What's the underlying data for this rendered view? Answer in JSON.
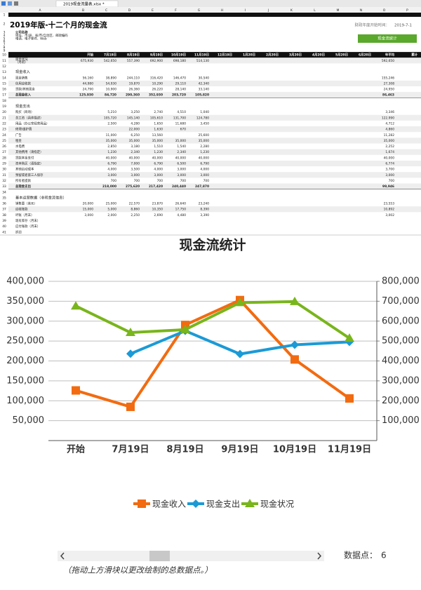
{
  "app": {
    "tab": "2019现金流量表.xlsx *",
    "columns": [
      "A",
      "B",
      "C",
      "D",
      "E",
      "F",
      "G",
      "H",
      "I",
      "J",
      "K",
      "L",
      "M",
      "N",
      "O",
      "P"
    ]
  },
  "sheet": {
    "title": "2019年版-十二个月的现金流",
    "fy_label": "财政年度开始时间：",
    "fy_value": "2019-7-1",
    "button": "现金流统计",
    "rows": [
      {
        "n": 1,
        "style": "black"
      },
      {
        "n": 2
      },
      {
        "n": 3,
        "label": "公司名称",
        "style": "bold"
      },
      {
        "n": 4,
        "label": "地址、市/县、省/市/自治区、邮政编码"
      },
      {
        "n": 5,
        "label": "电话、电子邮件、Web"
      },
      {
        "n": 6
      },
      {
        "n": 7
      },
      {
        "n": 8
      },
      {
        "n": 9
      },
      {
        "n": 10,
        "style": "header",
        "cells": [
          "开始",
          "7月19日",
          "8月19日",
          "9月19日",
          "10月19日",
          "11月19日",
          "12月19日",
          "1月20日",
          "2月20日",
          "3月20日",
          "4月20日",
          "5月20日",
          "6月20日",
          "年平均",
          "累计"
        ]
      },
      {
        "n": 11,
        "label": "现金状况",
        "sub": "（月初）",
        "cells": [
          "675,930",
          "542,650",
          "557,390",
          "692,900",
          "698,180",
          "514,130",
          null,
          null,
          null,
          null,
          null,
          null,
          null,
          "592,650",
          null
        ]
      },
      {
        "n": 12
      },
      {
        "n": 13,
        "label": "现金收入",
        "style": "section"
      },
      {
        "n": 14,
        "label": "现金销售",
        "cells": [
          "56,160",
          "38,890",
          "244,110",
          "316,420",
          "146,470",
          "30,540",
          null,
          null,
          null,
          null,
          null,
          null,
          null,
          "155,246",
          null
        ]
      },
      {
        "n": 15,
        "label": "信用应收款",
        "cells": [
          "44,980",
          "54,930",
          "19,870",
          "10,290",
          "29,110",
          "42,340",
          null,
          null,
          null,
          null,
          null,
          null,
          null,
          "27,308",
          null
        ]
      },
      {
        "n": 16,
        "label": "贷款/其他现金",
        "cells": [
          "24,790",
          "10,900",
          "26,360",
          "26,220",
          "28,140",
          "33,140",
          null,
          null,
          null,
          null,
          null,
          null,
          null,
          "24,950",
          null
        ]
      },
      {
        "n": 17,
        "label": "总现金收入",
        "style": "total",
        "cells": [
          "125,930",
          "84,720",
          "290,360",
          "352,930",
          "203,720",
          "105,820",
          null,
          null,
          null,
          null,
          null,
          null,
          null,
          "86,463",
          null
        ]
      },
      {
        "n": 18
      },
      {
        "n": 19,
        "label": "现金支出",
        "style": "section"
      },
      {
        "n": 20,
        "label": "购买（商场）",
        "cells": [
          null,
          "5,210",
          "3,250",
          "2,740",
          "4,510",
          "1,040",
          null,
          null,
          null,
          null,
          null,
          null,
          null,
          "3,346",
          null
        ]
      },
      {
        "n": 21,
        "label": "总工资（具体描述）",
        "cells": [
          null,
          "105,720",
          "145,140",
          "105,610",
          "131,700",
          "124,780",
          null,
          null,
          null,
          null,
          null,
          null,
          null,
          "122,990",
          null
        ]
      },
      {
        "n": 22,
        "label": "用品（办公室经营用品）",
        "cells": [
          null,
          "2,500",
          "4,280",
          "1,650",
          "11,680",
          "3,450",
          null,
          null,
          null,
          null,
          null,
          null,
          null,
          "4,712",
          null
        ]
      },
      {
        "n": 23,
        "label": "修理/维护费",
        "cells": [
          null,
          null,
          "22,000",
          "1,630",
          "670",
          null,
          null,
          null,
          null,
          null,
          null,
          null,
          null,
          "4,860",
          null
        ]
      },
      {
        "n": 24,
        "label": "广告",
        "cells": [
          null,
          "11,000",
          "6,250",
          "13,560",
          null,
          "25,600",
          null,
          null,
          null,
          null,
          null,
          null,
          null,
          "11,282",
          null
        ]
      },
      {
        "n": 25,
        "label": "租金",
        "cells": [
          null,
          "35,000",
          "35,000",
          "35,000",
          "35,000",
          "35,000",
          null,
          null,
          null,
          null,
          null,
          null,
          null,
          "35,000",
          null
        ]
      },
      {
        "n": 26,
        "label": "水电费",
        "cells": [
          null,
          "2,850",
          "3,180",
          "1,510",
          "1,540",
          "2,280",
          null,
          null,
          null,
          null,
          null,
          null,
          null,
          "2,252",
          null
        ]
      },
      {
        "n": 27,
        "label": "其他费用（请指定）",
        "cells": [
          null,
          "1,230",
          "2,340",
          "1,230",
          "2,340",
          "1,230",
          null,
          null,
          null,
          null,
          null,
          null,
          null,
          "1,674",
          null
        ]
      },
      {
        "n": 28,
        "label": "贷款本金支付",
        "cells": [
          null,
          "40,000",
          "40,000",
          "40,000",
          "40,000",
          "40,000",
          null,
          null,
          null,
          null,
          null,
          null,
          null,
          "40,000",
          null
        ]
      },
      {
        "n": 29,
        "label": "资本购买（请指定）",
        "cells": [
          null,
          "6,790",
          "7,000",
          "6,790",
          "6,500",
          "6,790",
          null,
          null,
          null,
          null,
          null,
          null,
          null,
          "6,774",
          null
        ]
      },
      {
        "n": 30,
        "label": "其他启动成本",
        "cells": [
          null,
          "4,000",
          "3,500",
          "4,000",
          "3,000",
          "4,000",
          null,
          null,
          null,
          null,
          null,
          null,
          null,
          "3,700",
          null
        ]
      },
      {
        "n": 31,
        "label": "预留或者第三人保存",
        "cells": [
          null,
          "3,000",
          "3,000",
          "3,000",
          "3,000",
          "3,000",
          null,
          null,
          null,
          null,
          null,
          null,
          null,
          "3,000",
          null
        ]
      },
      {
        "n": 32,
        "label": "所有者提款",
        "cells": [
          null,
          "700",
          "700",
          "700",
          "700",
          "700",
          null,
          null,
          null,
          null,
          null,
          null,
          null,
          "700",
          null
        ]
      },
      {
        "n": 33,
        "label": "总现金支出",
        "style": "total",
        "cells": [
          null,
          "218,000",
          "275,620",
          "217,420",
          "240,440",
          "247,870",
          null,
          null,
          null,
          null,
          null,
          null,
          null,
          "99,946",
          null
        ]
      },
      {
        "n": 34
      },
      {
        "n": 35,
        "label": "基本运营数据（非现金流信息）",
        "style": "section"
      },
      {
        "n": 36,
        "label": "销售量（美元）",
        "cells": [
          "20,000",
          "25,000",
          "22,570",
          "23,870",
          "26,640",
          "23,240",
          null,
          null,
          null,
          null,
          null,
          null,
          null,
          "23,553",
          null
        ]
      },
      {
        "n": 37,
        "label": "应收账款",
        "cells": [
          "15,000",
          "5,000",
          "8,860",
          "10,350",
          "17,750",
          "8,390",
          null,
          null,
          null,
          null,
          null,
          null,
          null,
          "10,892",
          null
        ]
      },
      {
        "n": 38,
        "label": "坏账（月末）",
        "cells": [
          "3,000",
          "2,000",
          "2,250",
          "2,690",
          "4,480",
          "3,390",
          null,
          null,
          null,
          null,
          null,
          null,
          null,
          "3,002",
          null
        ]
      },
      {
        "n": 39,
        "label": "现有库存（月末）"
      },
      {
        "n": 40,
        "label": "应付账款（月末）"
      },
      {
        "n": 41,
        "label": "折旧"
      }
    ]
  },
  "chart_data": {
    "type": "line",
    "title": "现金流统计",
    "categories": [
      "开始",
      "7月19日",
      "8月19日",
      "9月19日",
      "10月19日",
      "11月19日"
    ],
    "series": [
      {
        "name": "现金收入",
        "color": "#f26b10",
        "marker": "square",
        "values": [
          125930,
          84720,
          290360,
          352930,
          203720,
          105820
        ]
      },
      {
        "name": "现金支出",
        "color": "#1b9ad6",
        "marker": "diamond",
        "values": [
          null,
          218000,
          275620,
          217420,
          240440,
          247870
        ]
      },
      {
        "name": "现金状况",
        "color": "#79b51c",
        "marker": "triangle",
        "axis": "y2",
        "values": [
          675930,
          542650,
          557390,
          692900,
          698180,
          514130
        ]
      }
    ],
    "ylim": [
      0,
      400000
    ],
    "yticks": [
      {
        "value": 50000,
        "label": "50,000"
      },
      {
        "value": 100000,
        "label": "100,000"
      },
      {
        "value": 150000,
        "label": "150,000"
      },
      {
        "value": 200000,
        "label": "200,000"
      },
      {
        "value": 250000,
        "label": "250,000"
      },
      {
        "value": 300000,
        "label": "300,000"
      },
      {
        "value": 350000,
        "label": "350,000"
      },
      {
        "value": 400000,
        "label": "400,000"
      }
    ],
    "y2lim": [
      0,
      800000
    ],
    "y2ticks": [
      {
        "value": 100000,
        "label": "100,000"
      },
      {
        "value": 200000,
        "label": "200,000"
      },
      {
        "value": 300000,
        "label": "300,000"
      },
      {
        "value": 400000,
        "label": "400,000"
      },
      {
        "value": 500000,
        "label": "500,000"
      },
      {
        "value": 600000,
        "label": "600,000"
      },
      {
        "value": 700000,
        "label": "700,000"
      },
      {
        "value": 800000,
        "label": "800,000"
      }
    ],
    "grid": true,
    "legend": "bottom"
  },
  "controls": {
    "points_label": "数据点：",
    "points": 6,
    "note": "（拖动上方滑块以更改绘制的总数据点。）"
  }
}
